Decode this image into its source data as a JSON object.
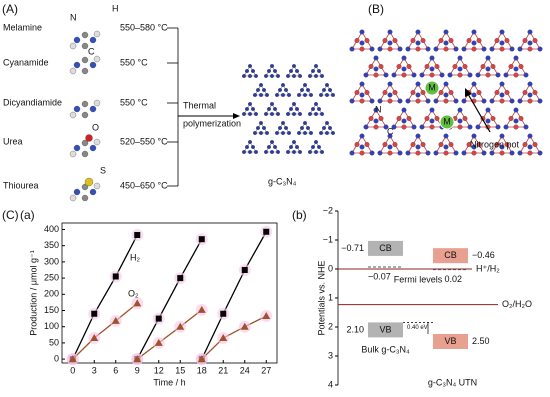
{
  "panel_a": {
    "label": "(A)",
    "precursors": [
      {
        "name": "Melamine",
        "temperature": "550–580 °C",
        "atoms": [
          "N",
          "H",
          "C"
        ]
      },
      {
        "name": "Cyanamide",
        "temperature": "550 °C"
      },
      {
        "name": "Dicyandiamide",
        "temperature": "550 °C"
      },
      {
        "name": "Urea",
        "temperature": "520–550 °C",
        "atoms": [
          "O"
        ]
      },
      {
        "name": "Thiourea",
        "temperature": "450–650 °C",
        "atoms": [
          "S"
        ]
      }
    ],
    "process": [
      "Thermal",
      "polymerization"
    ],
    "product": "g-C₃N₄"
  },
  "panel_b": {
    "label": "(B)",
    "metal": [
      "M",
      "M"
    ],
    "atoms": [
      "N",
      "C"
    ],
    "annotation": "Nitrogen pot"
  },
  "panel_c_label": "(C)",
  "chart_data": [
    {
      "type": "line",
      "panel_label": "(a)",
      "xlabel": "Time / h",
      "ylabel": "Production / μmol g⁻¹",
      "xlim": [
        -1.5,
        28.5
      ],
      "xticks": [
        0,
        3,
        6,
        9,
        12,
        15,
        18,
        21,
        24,
        27
      ],
      "ylim": [
        -12,
        420
      ],
      "yticks": [
        0,
        50,
        100,
        150,
        200,
        250,
        300,
        350,
        400
      ],
      "series": [
        {
          "name": "H₂",
          "color": "#000000",
          "marker": "square",
          "x": [
            0,
            3,
            6,
            9,
            null,
            9,
            12,
            15,
            18,
            null,
            18,
            21,
            24,
            27
          ],
          "values": [
            0,
            140,
            255,
            383,
            null,
            0,
            125,
            250,
            370,
            null,
            0,
            140,
            275,
            393
          ]
        },
        {
          "name": "O₂",
          "color": "#a0522d",
          "marker": "triangle",
          "x": [
            0,
            3,
            6,
            9,
            null,
            9,
            12,
            15,
            18,
            null,
            18,
            21,
            24,
            27
          ],
          "values": [
            0,
            65,
            118,
            172,
            null,
            0,
            50,
            100,
            152,
            null,
            0,
            65,
            100,
            133
          ]
        }
      ]
    },
    {
      "type": "band",
      "panel_label": "(b)",
      "ylabel": "Potentials vs. NHE",
      "y_inverted": true,
      "ylim": [
        -2,
        4
      ],
      "yticks": [
        {
          "value": -2,
          "label": "−2"
        },
        {
          "value": -1,
          "label": "−1"
        },
        0,
        1,
        2,
        3,
        4
      ],
      "band_names": [
        "CB",
        "VB"
      ],
      "fermi_name": "Fermi levels",
      "gap_annotation": "0.40 eV",
      "references": [
        {
          "name": "H⁺/H₂",
          "value": 0
        },
        {
          "name": "O₂/H₂O",
          "value": 1.23
        }
      ],
      "materials": [
        {
          "name": "Bulk g-C₃N₄",
          "color": "#b3b3b3",
          "cb": -0.71,
          "cb_label": "−0.71",
          "vb": 2.1,
          "vb_label": "2.10",
          "fermi": -0.07,
          "fermi_label": "−0.07"
        },
        {
          "name": "g-C₃N₄ UTN",
          "color": "#e8a090",
          "cb": -0.46,
          "cb_label": "−0.46",
          "vb": 2.5,
          "vb_label": "2.50",
          "fermi": 0.02,
          "fermi_label": "0.02"
        }
      ]
    }
  ]
}
